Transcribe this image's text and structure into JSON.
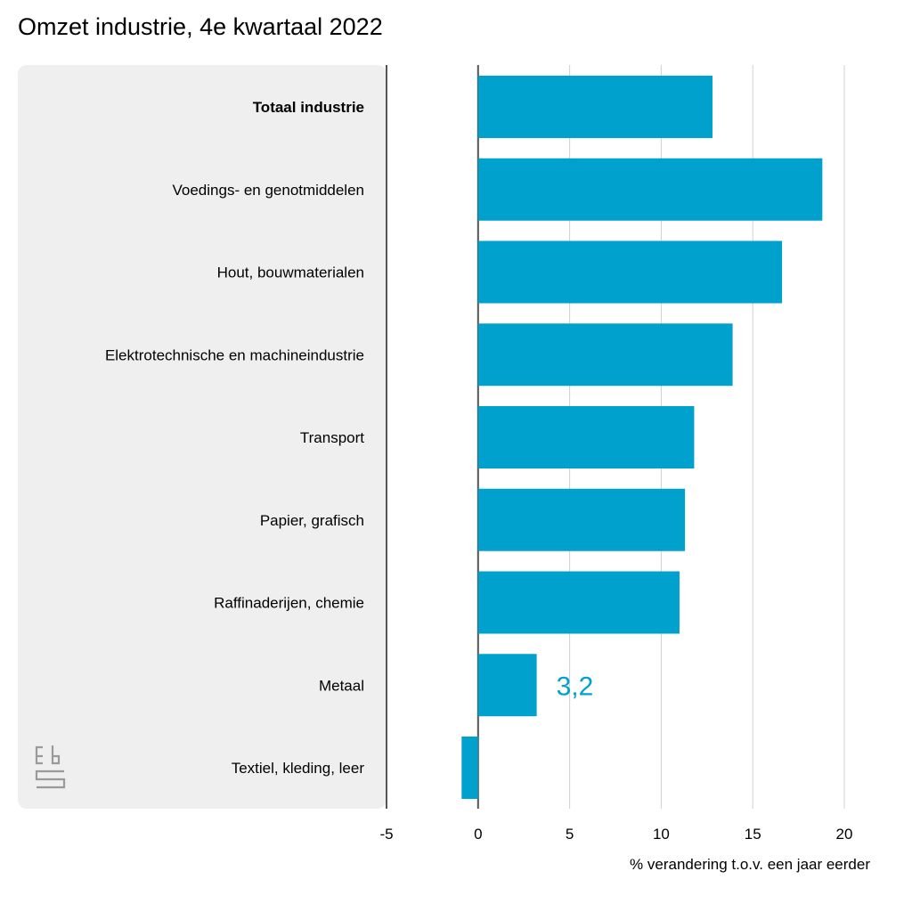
{
  "chart_data": {
    "type": "bar",
    "orientation": "horizontal",
    "title": "Omzet industrie, 4e kwartaal 2022",
    "xlabel": "% verandering t.o.v. een jaar eerder",
    "ylabel": "",
    "xlim": [
      -5,
      20
    ],
    "xticks": [
      -5,
      0,
      5,
      10,
      15,
      20
    ],
    "xtick_labels": [
      "-5",
      "0",
      "5",
      "10",
      "15",
      "20"
    ],
    "grid": "vertical",
    "categories": [
      "Totaal industrie",
      "Voedings- en genotmiddelen",
      "Hout, bouwmaterialen",
      "Elektrotechnische en machineindustrie",
      "Transport",
      "Papier, grafisch",
      "Raffinaderijen, chemie",
      "Metaal",
      "Textiel, kleding, leer"
    ],
    "bold_categories": [
      "Totaal industrie"
    ],
    "values": [
      12.8,
      18.8,
      16.6,
      13.9,
      11.8,
      11.3,
      11.0,
      3.2,
      -0.9
    ],
    "annotations": [
      {
        "category": "Metaal",
        "text": "3,2"
      }
    ],
    "bar_color": "#00a1cd",
    "label_panel_color": "#efefef",
    "logo": "cbs-logo"
  }
}
